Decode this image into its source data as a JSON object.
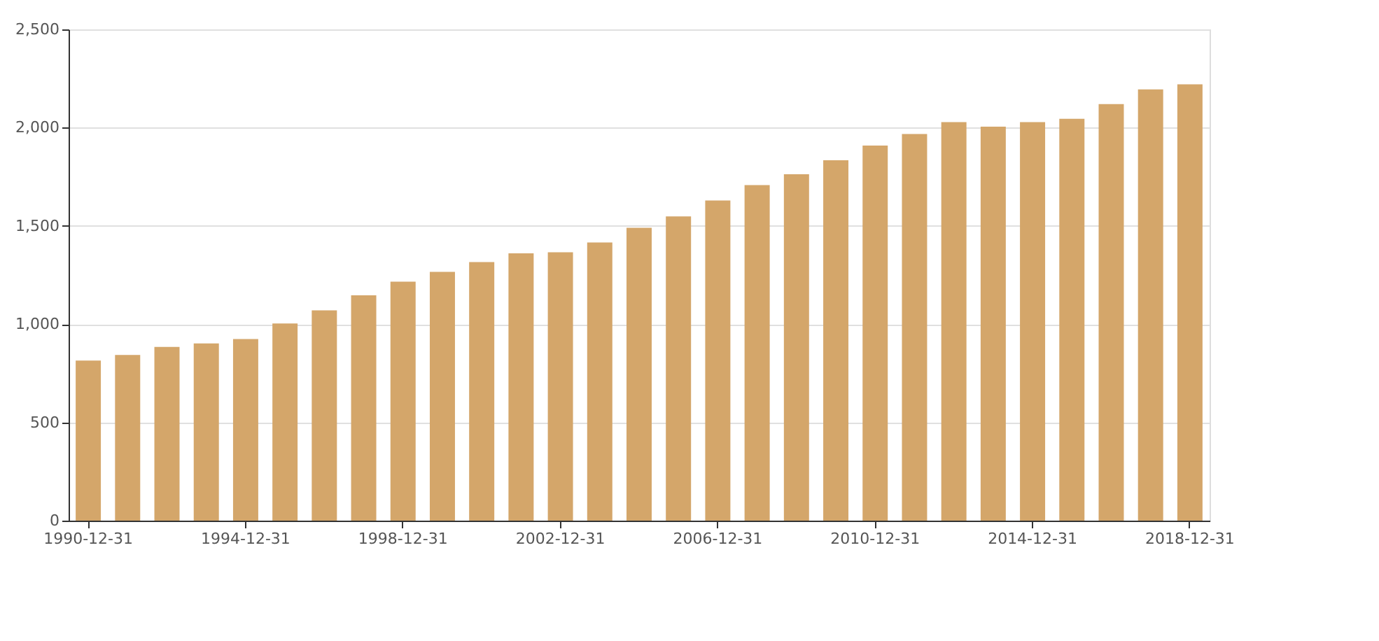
{
  "chart_data": {
    "type": "bar",
    "categories": [
      "1990-12-31",
      null,
      null,
      null,
      "1994-12-31",
      null,
      null,
      null,
      "1998-12-31",
      null,
      null,
      null,
      "2002-12-31",
      null,
      null,
      null,
      "2006-12-31",
      null,
      null,
      null,
      "2010-12-31",
      null,
      null,
      null,
      "2014-12-31",
      null,
      null,
      null,
      "2018-12-31"
    ],
    "values": [
      815,
      843,
      884,
      902,
      924,
      1003,
      1070,
      1147,
      1216,
      1266,
      1316,
      1360,
      1366,
      1416,
      1490,
      1548,
      1629,
      1708,
      1763,
      1834,
      1909,
      1968,
      2028,
      2005,
      2028,
      2045,
      2120,
      2195,
      2220
    ],
    "color": "#d4a66a",
    "ylim": [
      0,
      2500
    ],
    "yticks": [
      {
        "value": 0,
        "label": "0"
      },
      {
        "value": 500,
        "label": "500"
      },
      {
        "value": 1000,
        "label": "1,000"
      },
      {
        "value": 1500,
        "label": "1,500"
      },
      {
        "value": 2000,
        "label": "2,000"
      },
      {
        "value": 2500,
        "label": "2,500"
      }
    ],
    "grid": "y"
  }
}
